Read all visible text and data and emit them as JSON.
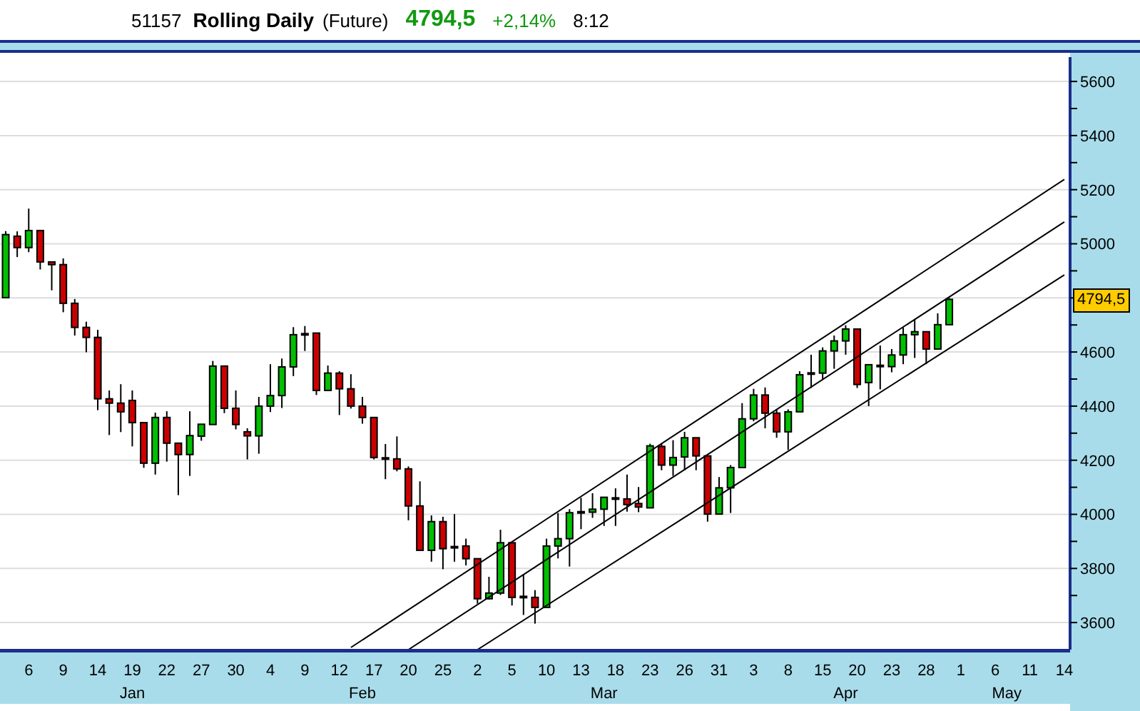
{
  "chart_data": {
    "type": "candlestick",
    "title": "Rolling Daily",
    "subtitle": "(Future)",
    "annotations": [
      "51157",
      "4794,5",
      "+2,14%",
      "8:12",
      "Jan",
      "Feb",
      "Mar",
      "Apr",
      "May",
      {
        "text": "4794,5",
        "y": 4794.5
      }
    ],
    "categories": [
      null,
      null,
      "6",
      null,
      null,
      "9",
      null,
      null,
      "14",
      null,
      null,
      "19",
      null,
      null,
      "22",
      null,
      null,
      "27",
      null,
      null,
      "30",
      null,
      null,
      "4",
      null,
      null,
      "9",
      null,
      null,
      "12",
      null,
      null,
      "17",
      null,
      null,
      "20",
      null,
      null,
      "25",
      null,
      null,
      "2",
      null,
      null,
      "5",
      null,
      null,
      "10",
      null,
      null,
      "13",
      null,
      null,
      "18",
      null,
      null,
      "23",
      null,
      null,
      "26",
      null,
      null,
      "31",
      null,
      null,
      "3",
      null,
      null,
      "8",
      null,
      null,
      "15",
      null,
      null,
      "20",
      null,
      null,
      "23",
      null,
      null,
      "28",
      null,
      null,
      "1",
      null,
      null,
      "6",
      null,
      null,
      "11",
      null,
      null,
      "14"
    ],
    "ohlc": [
      [
        4801,
        5047,
        4801,
        5034
      ],
      [
        5028,
        5046,
        4951,
        4986
      ],
      [
        4986,
        5130,
        4969,
        5049
      ],
      [
        5049,
        5049,
        4905,
        4933
      ],
      [
        4933,
        4933,
        4828,
        4923
      ],
      [
        4923,
        4946,
        4747,
        4780
      ],
      [
        4780,
        4796,
        4661,
        4691
      ],
      [
        4691,
        4712,
        4599,
        4654
      ],
      [
        4654,
        4682,
        4385,
        4427
      ],
      [
        4427,
        4458,
        4293,
        4411
      ],
      [
        4411,
        4481,
        4304,
        4379
      ],
      [
        4421,
        4458,
        4251,
        4339
      ],
      [
        4339,
        4339,
        4172,
        4189
      ],
      [
        4189,
        4376,
        4147,
        4358
      ],
      [
        4358,
        4381,
        4195,
        4263
      ],
      [
        4263,
        4263,
        4071,
        4221
      ],
      [
        4221,
        4381,
        4142,
        4291
      ],
      [
        4289,
        4333,
        4272,
        4333
      ],
      [
        4332,
        4567,
        4332,
        4548
      ],
      [
        4548,
        4548,
        4374,
        4392
      ],
      [
        4392,
        4458,
        4314,
        4332
      ],
      [
        4305,
        4318,
        4203,
        4290
      ],
      [
        4290,
        4434,
        4224,
        4400
      ],
      [
        4400,
        4555,
        4378,
        4439
      ],
      [
        4439,
        4576,
        4393,
        4545
      ],
      [
        4545,
        4692,
        4511,
        4664
      ],
      [
        4665,
        4696,
        4604,
        4668
      ],
      [
        4670,
        4670,
        4441,
        4458
      ],
      [
        4458,
        4550,
        4458,
        4522
      ],
      [
        4522,
        4529,
        4367,
        4464
      ],
      [
        4464,
        4518,
        4391,
        4400
      ],
      [
        4400,
        4434,
        4335,
        4358
      ],
      [
        4358,
        4358,
        4203,
        4210
      ],
      [
        4209,
        4260,
        4130,
        4206
      ],
      [
        4205,
        4288,
        4159,
        4168
      ],
      [
        4168,
        4177,
        3978,
        4031
      ],
      [
        4031,
        4122,
        3867,
        3867
      ],
      [
        3867,
        3996,
        3825,
        3973
      ],
      [
        3973,
        3991,
        3797,
        3873
      ],
      [
        3881,
        4001,
        3825,
        3877
      ],
      [
        3883,
        3910,
        3811,
        3836
      ],
      [
        3836,
        3836,
        3670,
        3688
      ],
      [
        3688,
        3769,
        3685,
        3709
      ],
      [
        3709,
        3943,
        3702,
        3895
      ],
      [
        3895,
        3895,
        3663,
        3693
      ],
      [
        3697,
        3779,
        3628,
        3695
      ],
      [
        3693,
        3720,
        3596,
        3656
      ],
      [
        3656,
        3910,
        3656,
        3883
      ],
      [
        3883,
        4005,
        3837,
        3910
      ],
      [
        3910,
        4019,
        3807,
        4006
      ],
      [
        4007,
        4061,
        3945,
        4010
      ],
      [
        4008,
        4078,
        3987,
        4019
      ],
      [
        4019,
        4063,
        3957,
        4063
      ],
      [
        4060,
        4096,
        3957,
        4061
      ],
      [
        4057,
        4147,
        4010,
        4036
      ],
      [
        4040,
        4101,
        4008,
        4027
      ],
      [
        4024,
        4261,
        4024,
        4253
      ],
      [
        4251,
        4261,
        4163,
        4182
      ],
      [
        4182,
        4274,
        4142,
        4210
      ],
      [
        4212,
        4305,
        4163,
        4283
      ],
      [
        4283,
        4283,
        4163,
        4216
      ],
      [
        4216,
        4216,
        3973,
        4001
      ],
      [
        4001,
        4138,
        4001,
        4098
      ],
      [
        4098,
        4182,
        4005,
        4173
      ],
      [
        4173,
        4411,
        4173,
        4353
      ],
      [
        4353,
        4464,
        4344,
        4441
      ],
      [
        4441,
        4469,
        4318,
        4374
      ],
      [
        4374,
        4388,
        4283,
        4305
      ],
      [
        4305,
        4388,
        4238,
        4379
      ],
      [
        4379,
        4529,
        4379,
        4516
      ],
      [
        4523,
        4590,
        4467,
        4522
      ],
      [
        4522,
        4617,
        4497,
        4604
      ],
      [
        4604,
        4661,
        4538,
        4641
      ],
      [
        4641,
        4699,
        4590,
        4685
      ],
      [
        4685,
        4685,
        4467,
        4480
      ],
      [
        4487,
        4553,
        4400,
        4553
      ],
      [
        4550,
        4624,
        4462,
        4551
      ],
      [
        4546,
        4611,
        4525,
        4589
      ],
      [
        4589,
        4690,
        4555,
        4664
      ],
      [
        4664,
        4722,
        4578,
        4675
      ],
      [
        4675,
        4675,
        4555,
        4611
      ],
      [
        4611,
        4743,
        4611,
        4701
      ],
      [
        4701,
        4800,
        4701,
        4794.5
      ],
      null,
      null,
      null,
      null,
      null,
      null,
      null,
      null,
      null,
      null
    ],
    "colors": [
      "#00c000",
      "#cc0000",
      "#00c000",
      "#cc0000",
      "#cc0000",
      "#cc0000",
      "#cc0000",
      "#cc0000",
      "#cc0000",
      "#cc0000",
      "#cc0000",
      "#cc0000",
      "#cc0000",
      "#00c000",
      "#cc0000",
      "#cc0000",
      "#00c000",
      "#00c000",
      "#00c000",
      "#cc0000",
      "#cc0000",
      "#cc0000",
      "#00c000",
      "#00c000",
      "#00c000",
      "#00c000",
      "#00c000",
      "#cc0000",
      "#00c000",
      "#cc0000",
      "#cc0000",
      "#cc0000",
      "#cc0000",
      "#cc0000",
      "#cc0000",
      "#cc0000",
      "#cc0000",
      "#00c000",
      "#cc0000",
      "#cc0000",
      "#cc0000",
      "#cc0000",
      "#00c000",
      "#00c000",
      "#cc0000",
      "#cc0000",
      "#cc0000",
      "#00c000",
      "#00c000",
      "#00c000",
      "#00c000",
      "#00c000",
      "#00c000",
      "#00c000",
      "#cc0000",
      "#cc0000",
      "#00c000",
      "#cc0000",
      "#00c000",
      "#00c000",
      "#cc0000",
      "#cc0000",
      "#00c000",
      "#00c000",
      "#00c000",
      "#00c000",
      "#cc0000",
      "#cc0000",
      "#00c000",
      "#00c000",
      "#cc0000",
      "#00c000",
      "#00c000",
      "#00c000",
      "#cc0000",
      "#00c000",
      "#00c000",
      "#00c000",
      "#00c000",
      "#00c000",
      "#cc0000",
      "#00c000",
      "#00c000",
      null,
      null,
      null,
      null,
      null,
      null,
      null,
      null,
      null,
      null
    ],
    "series": [
      {
        "type": "line",
        "color": "#000000",
        "values": [
          null,
          null,
          null,
          null,
          null,
          null,
          null,
          null,
          null,
          null,
          null,
          null,
          null,
          null,
          null,
          null,
          null,
          null,
          null,
          null,
          null,
          null,
          null,
          null,
          null,
          null,
          null,
          null,
          null,
          null,
          3508,
          null,
          null,
          null,
          null,
          null,
          null,
          null,
          null,
          null,
          null,
          null,
          null,
          null,
          null,
          null,
          null,
          null,
          null,
          null,
          null,
          null,
          null,
          null,
          null,
          null,
          null,
          null,
          null,
          null,
          null,
          null,
          null,
          null,
          null,
          null,
          null,
          null,
          null,
          null,
          null,
          null,
          null,
          null,
          null,
          null,
          null,
          null,
          null,
          null,
          null,
          null,
          null,
          null,
          null,
          null,
          null,
          null,
          null,
          null,
          null,
          null,
          5238
        ]
      },
      {
        "type": "line",
        "color": "#000000",
        "values": [
          null,
          null,
          null,
          null,
          null,
          null,
          null,
          null,
          null,
          null,
          null,
          null,
          null,
          null,
          null,
          null,
          null,
          null,
          null,
          null,
          null,
          null,
          null,
          null,
          null,
          null,
          null,
          null,
          null,
          null,
          null,
          null,
          null,
          null,
          null,
          3500,
          null,
          null,
          null,
          null,
          null,
          null,
          null,
          null,
          null,
          null,
          null,
          null,
          null,
          null,
          null,
          null,
          null,
          null,
          null,
          null,
          null,
          null,
          null,
          null,
          null,
          null,
          null,
          null,
          null,
          null,
          null,
          null,
          null,
          null,
          null,
          null,
          null,
          null,
          null,
          null,
          null,
          null,
          null,
          null,
          null,
          null,
          null,
          null,
          null,
          null,
          null,
          null,
          null,
          null,
          null,
          null,
          5081
        ]
      },
      {
        "type": "line",
        "color": "#000000",
        "values": [
          null,
          null,
          null,
          null,
          null,
          null,
          null,
          null,
          null,
          null,
          null,
          null,
          null,
          null,
          null,
          null,
          null,
          null,
          null,
          null,
          null,
          null,
          null,
          null,
          null,
          null,
          null,
          null,
          null,
          null,
          null,
          null,
          null,
          null,
          null,
          null,
          null,
          null,
          null,
          null,
          null,
          3500,
          null,
          null,
          null,
          null,
          null,
          null,
          null,
          null,
          null,
          null,
          null,
          null,
          null,
          null,
          null,
          null,
          null,
          null,
          null,
          null,
          null,
          null,
          null,
          null,
          null,
          null,
          null,
          null,
          null,
          null,
          null,
          null,
          null,
          null,
          null,
          null,
          null,
          null,
          null,
          null,
          null,
          null,
          null,
          null,
          null,
          null,
          null,
          null,
          null,
          null,
          4885
        ]
      }
    ],
    "ylim": [
      3500,
      5690
    ],
    "yticks": [
      3600,
      {
        "value": 3700,
        "label": null
      },
      3800,
      {
        "value": 3900,
        "label": null
      },
      4000,
      {
        "value": 4100,
        "label": null
      },
      4200,
      {
        "value": 4300,
        "label": null
      },
      4400,
      {
        "value": 4500,
        "label": null
      },
      4600,
      {
        "value": 4700,
        "label": null
      },
      {
        "value": 4800,
        "label": null
      },
      {
        "value": 4900,
        "label": null
      },
      5000,
      {
        "value": 5100,
        "label": null
      },
      5200,
      {
        "value": 5300,
        "label": null
      },
      5400,
      {
        "value": 5500,
        "label": null
      },
      5600
    ],
    "grid": "y"
  }
}
